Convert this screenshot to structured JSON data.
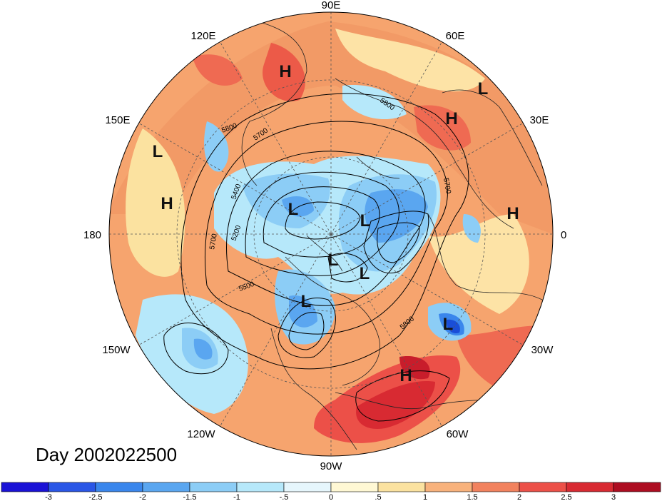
{
  "title": "Day 2002022500",
  "projection": "polar-stereographic-north",
  "longitude_labels": [
    {
      "text": "90E",
      "lon": 90
    },
    {
      "text": "60E",
      "lon": 60
    },
    {
      "text": "30E",
      "lon": 30
    },
    {
      "text": "0",
      "lon": 0
    },
    {
      "text": "30W",
      "lon": -30
    },
    {
      "text": "60W",
      "lon": -60
    },
    {
      "text": "90W",
      "lon": -90
    },
    {
      "text": "120W",
      "lon": -120
    },
    {
      "text": "150W",
      "lon": -150
    },
    {
      "text": "180",
      "lon": 180
    },
    {
      "text": "150E",
      "lon": 150
    },
    {
      "text": "120E",
      "lon": 120
    }
  ],
  "pressure_centers": [
    {
      "type": "H",
      "region": "siberia"
    },
    {
      "type": "L",
      "region": "barents-sea"
    },
    {
      "type": "H",
      "region": "scandinavia"
    },
    {
      "type": "L",
      "region": "north-pacific-west"
    },
    {
      "type": "H",
      "region": "north-pacific"
    },
    {
      "type": "H",
      "region": "north-africa"
    },
    {
      "type": "L",
      "region": "arctic-siberia"
    },
    {
      "type": "L",
      "region": "greenland-north"
    },
    {
      "type": "L",
      "region": "canadian-arctic"
    },
    {
      "type": "L",
      "region": "baffin"
    },
    {
      "type": "L",
      "region": "hudson-bay"
    },
    {
      "type": "L",
      "region": "north-atlantic"
    },
    {
      "type": "H",
      "region": "caribbean"
    }
  ],
  "contour_labels": [
    "5800",
    "5700",
    "5800",
    "5700",
    "5400",
    "5200",
    "5700",
    "5500",
    "5800"
  ],
  "colorbar": {
    "colors": [
      "#1a12d6",
      "#2a56e6",
      "#3a86ec",
      "#5aa6f0",
      "#8ccdf6",
      "#b6e8fa",
      "#e6f6fc",
      "#fff8d4",
      "#fbe2a0",
      "#f8b27c",
      "#f2825e",
      "#ec5048",
      "#d82a32",
      "#ad0d21"
    ],
    "tick_labels": [
      "-3",
      "-2.5",
      "-2",
      "-1.5",
      "-1",
      "-.5",
      "0",
      ".5",
      "1",
      "1.5",
      "2",
      "2.5",
      "3"
    ]
  },
  "colors": {
    "warm_fill": "#f6a46e",
    "cool_fill": "#7cc0f0",
    "contour": "#000000",
    "grid": "#555555"
  }
}
